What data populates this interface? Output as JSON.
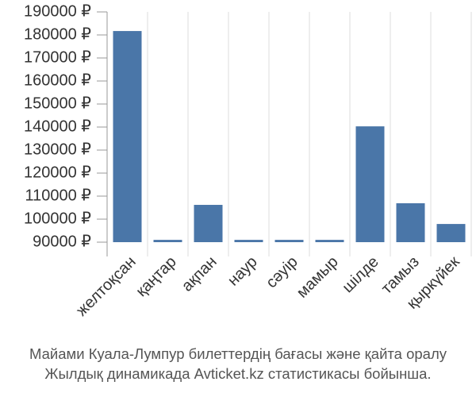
{
  "chart_data": {
    "type": "bar",
    "title": [
      "Майами Куала-Лумпур билеттердің бағасы және қайта оралу",
      "Жылдық динамикада Avticket.kz статистикасы бойынша."
    ],
    "categories": [
      "желтоқсан",
      "қаңтар",
      "ақпан",
      "наур",
      "сәуір",
      "мамыр",
      "шілде",
      "тамыз",
      "қыркүйек"
    ],
    "values": [
      181700,
      91000,
      106200,
      91000,
      91000,
      91000,
      140300,
      106900,
      97900
    ],
    "color": "#4a76a8",
    "ylim": [
      90000,
      190000
    ],
    "yticks": [
      {
        "value": 90000,
        "label": "90000 ₽"
      },
      {
        "value": 100000,
        "label": "100000 ₽"
      },
      {
        "value": 110000,
        "label": "110000 ₽"
      },
      {
        "value": 120000,
        "label": "120000 ₽"
      },
      {
        "value": 130000,
        "label": "130000 ₽"
      },
      {
        "value": 140000,
        "label": "140000 ₽"
      },
      {
        "value": 150000,
        "label": "150000 ₽"
      },
      {
        "value": 160000,
        "label": "160000 ₽"
      },
      {
        "value": 170000,
        "label": "170000 ₽"
      },
      {
        "value": 180000,
        "label": "180000 ₽"
      },
      {
        "value": 190000,
        "label": "190000 ₽"
      }
    ],
    "grid": true
  }
}
